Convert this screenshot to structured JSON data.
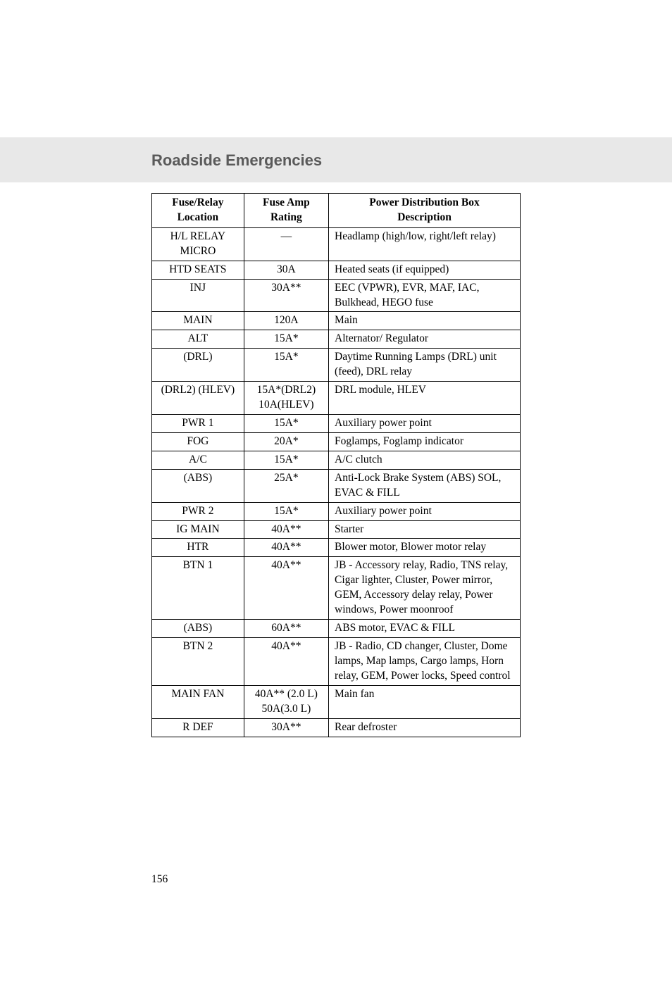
{
  "section_title": "Roadside Emergencies",
  "page_number": "156",
  "table": {
    "headers": {
      "col1_line1": "Fuse/Relay",
      "col1_line2": "Location",
      "col2_line1": "Fuse Amp",
      "col2_line2": "Rating",
      "col3_line1": "Power Distribution Box",
      "col3_line2": "Description"
    },
    "column_alignment": [
      "center",
      "center",
      "left"
    ],
    "border_color": "#000000",
    "header_font_weight": "bold",
    "body_font_size": 15.5,
    "rows": [
      {
        "loc": "H/L RELAY MICRO",
        "amp": "—",
        "desc": "Headlamp (high/low, right/left relay)"
      },
      {
        "loc": "HTD SEATS",
        "amp": "30A",
        "desc": "Heated seats (if equipped)"
      },
      {
        "loc": "INJ",
        "amp": "30A**",
        "desc": "EEC (VPWR), EVR, MAF, IAC, Bulkhead, HEGO fuse"
      },
      {
        "loc": "MAIN",
        "amp": "120A",
        "desc": "Main"
      },
      {
        "loc": "ALT",
        "amp": "15A*",
        "desc": "Alternator/ Regulator"
      },
      {
        "loc": "(DRL)",
        "amp": "15A*",
        "desc": "Daytime Running Lamps (DRL) unit (feed), DRL relay"
      },
      {
        "loc": "(DRL2) (HLEV)",
        "amp": "15A*(DRL2) 10A(HLEV)",
        "desc": "DRL module, HLEV"
      },
      {
        "loc": "PWR 1",
        "amp": "15A*",
        "desc": "Auxiliary power point"
      },
      {
        "loc": "FOG",
        "amp": "20A*",
        "desc": "Foglamps, Foglamp indicator"
      },
      {
        "loc": "A/C",
        "amp": "15A*",
        "desc": "A/C clutch"
      },
      {
        "loc": "(ABS)",
        "amp": "25A*",
        "desc": "Anti-Lock Brake System (ABS) SOL, EVAC & FILL"
      },
      {
        "loc": "PWR 2",
        "amp": "15A*",
        "desc": "Auxiliary power point"
      },
      {
        "loc": "IG MAIN",
        "amp": "40A**",
        "desc": "Starter"
      },
      {
        "loc": "HTR",
        "amp": "40A**",
        "desc": "Blower motor, Blower motor relay"
      },
      {
        "loc": "BTN 1",
        "amp": "40A**",
        "desc": "JB - Accessory relay, Radio, TNS relay, Cigar lighter, Cluster, Power mirror, GEM, Accessory delay relay, Power windows, Power moonroof"
      },
      {
        "loc": "(ABS)",
        "amp": "60A**",
        "desc": "ABS motor, EVAC & FILL"
      },
      {
        "loc": "BTN 2",
        "amp": "40A**",
        "desc": "JB - Radio, CD changer, Cluster, Dome lamps, Map lamps, Cargo lamps, Horn relay, GEM, Power locks, Speed control"
      },
      {
        "loc": "MAIN FAN",
        "amp": "40A** (2.0 L) 50A(3.0 L)",
        "desc": "Main fan"
      },
      {
        "loc": "R DEF",
        "amp": "30A**",
        "desc": "Rear defroster"
      }
    ]
  }
}
